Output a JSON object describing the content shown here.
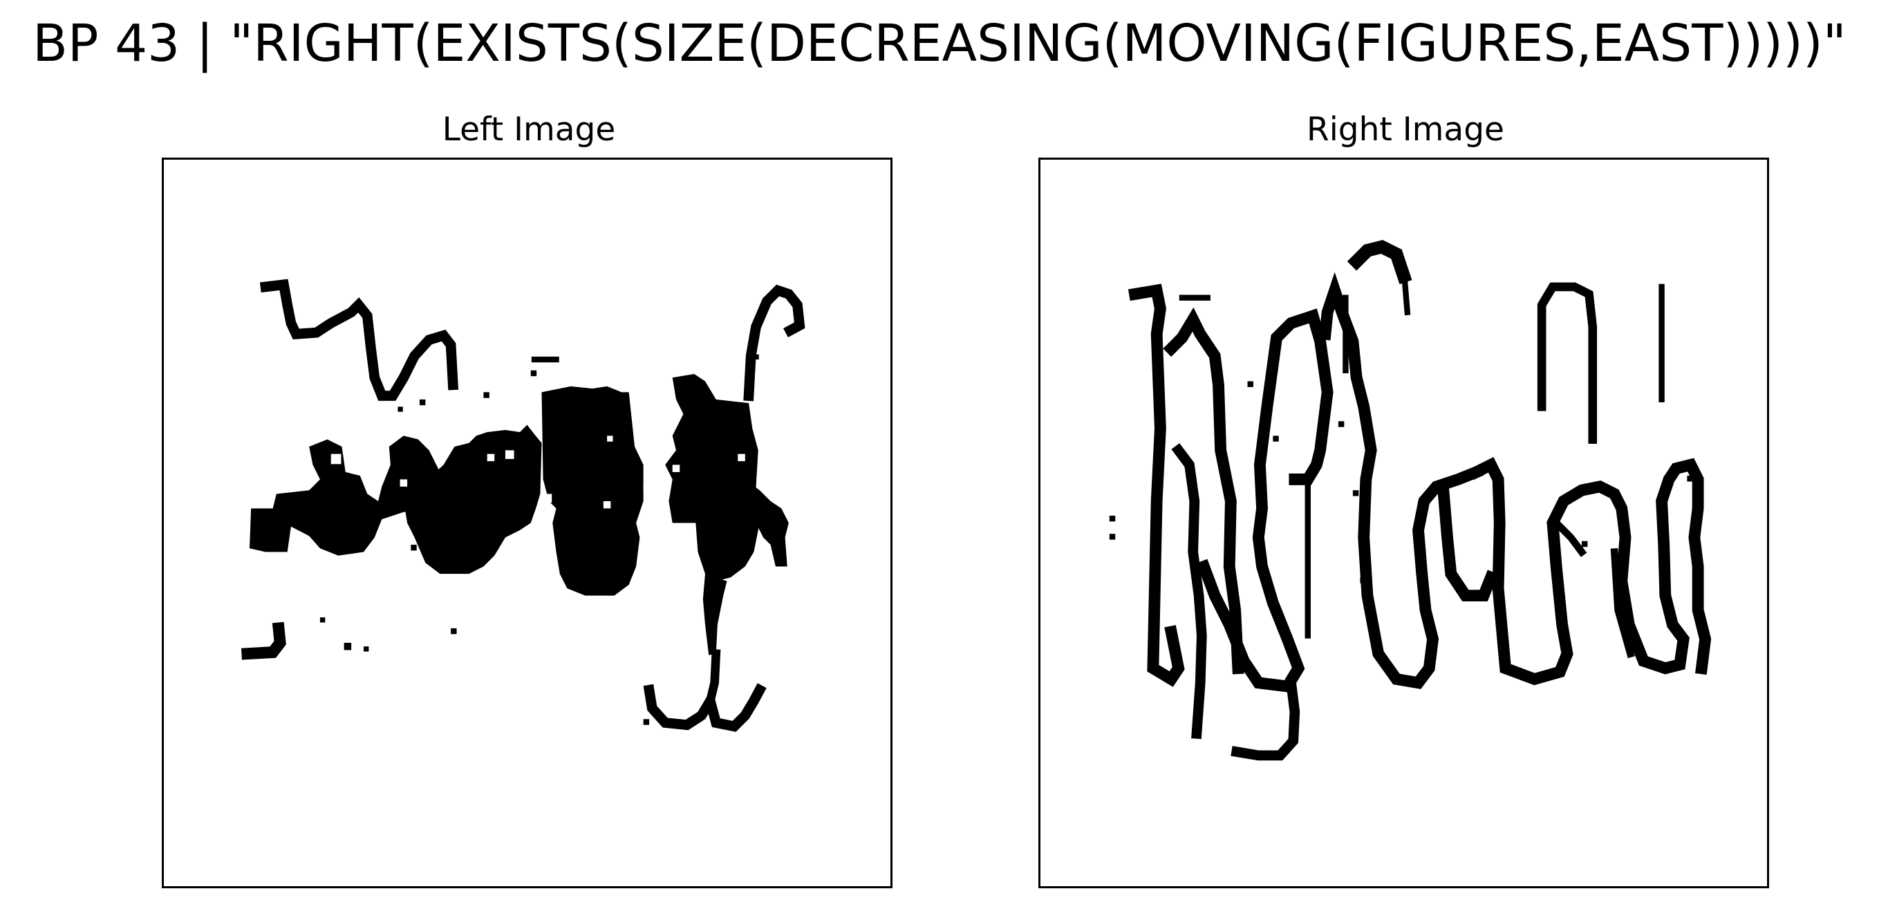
{
  "figure": {
    "title": "BP 43 | \"RIGHT(EXISTS(SIZE(DECREASING(MOVING(FIGURES,EAST)))))\""
  },
  "panels": {
    "left": {
      "title": "Left Image"
    },
    "right": {
      "title": "Right Image"
    }
  },
  "colors": {
    "ink": "#000000",
    "background": "#ffffff",
    "frame": "#000000"
  }
}
